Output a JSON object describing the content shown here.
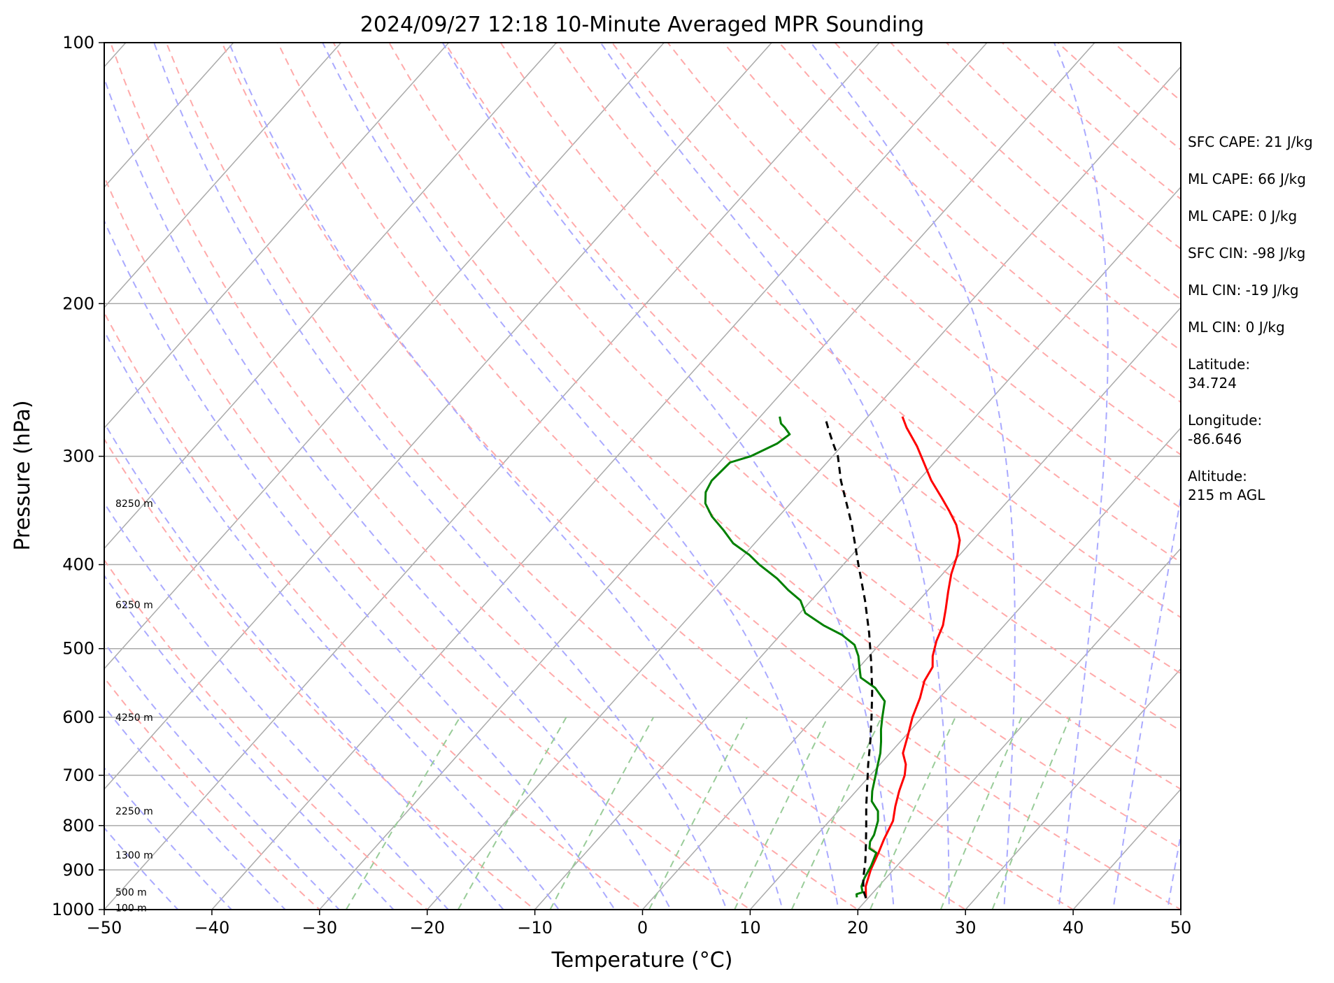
{
  "chart_data": {
    "type": "line",
    "title": "2024/09/27 12:18 10-Minute Averaged MPR Sounding",
    "xlabel": "Temperature (°C)",
    "ylabel": "Pressure (hPa)",
    "xlim": [
      -50,
      50
    ],
    "ylim": [
      1000,
      100
    ],
    "y_scale": "log",
    "grid": true,
    "x_ticks": [
      "−50",
      "−40",
      "−30",
      "−20",
      "−10",
      "0",
      "10",
      "20",
      "30",
      "40",
      "50"
    ],
    "y_ticks": [
      "100",
      "200",
      "300",
      "400",
      "500",
      "600",
      "700",
      "800",
      "900",
      "1000"
    ],
    "x_tick_values": [
      -50,
      -40,
      -30,
      -20,
      -10,
      0,
      10,
      20,
      30,
      40,
      50
    ],
    "y_tick_values": [
      100,
      200,
      300,
      400,
      500,
      600,
      700,
      800,
      900,
      1000
    ],
    "series": [
      {
        "key": "temperature",
        "color": "#ff0000",
        "dash": false,
        "points": [
          [
            19.8,
            970
          ],
          [
            18.8,
            940
          ],
          [
            17.9,
            900
          ],
          [
            17.2,
            860
          ],
          [
            16.6,
            830
          ],
          [
            15.9,
            790
          ],
          [
            14.9,
            760
          ],
          [
            14.0,
            730
          ],
          [
            13.2,
            700
          ],
          [
            12.4,
            680
          ],
          [
            11.2,
            660
          ],
          [
            10.2,
            630
          ],
          [
            9.1,
            600
          ],
          [
            8.2,
            570
          ],
          [
            7.2,
            545
          ],
          [
            6.8,
            525
          ],
          [
            5.9,
            510
          ],
          [
            5.0,
            490
          ],
          [
            4.3,
            470
          ],
          [
            3.2,
            450
          ],
          [
            2.0,
            430
          ],
          [
            0.8,
            410
          ],
          [
            -0.2,
            390
          ],
          [
            -1.2,
            375
          ],
          [
            -2.8,
            360
          ],
          [
            -4.6,
            347
          ],
          [
            -6.4,
            335
          ],
          [
            -8.8,
            320
          ],
          [
            -11.0,
            305
          ],
          [
            -13.0,
            292
          ],
          [
            -15.5,
            278
          ],
          [
            -16.8,
            270
          ]
        ]
      },
      {
        "key": "dewpoint",
        "color": "#008000",
        "dash": false,
        "points": [
          [
            18.9,
            968
          ],
          [
            18.6,
            960
          ],
          [
            19.0,
            955
          ],
          [
            18.4,
            940
          ],
          [
            18.0,
            920
          ],
          [
            17.6,
            890
          ],
          [
            17.0,
            860
          ],
          [
            16.0,
            850
          ],
          [
            15.5,
            835
          ],
          [
            15.3,
            820
          ],
          [
            14.5,
            790
          ],
          [
            13.7,
            770
          ],
          [
            12.3,
            750
          ],
          [
            11.5,
            730
          ],
          [
            10.5,
            700
          ],
          [
            9.8,
            680
          ],
          [
            9.1,
            660
          ],
          [
            8.2,
            640
          ],
          [
            7.2,
            620
          ],
          [
            6.3,
            600
          ],
          [
            5.2,
            575
          ],
          [
            3.2,
            555
          ],
          [
            1.0,
            540
          ],
          [
            0.0,
            525
          ],
          [
            -1.0,
            510
          ],
          [
            -2.3,
            495
          ],
          [
            -4.3,
            482
          ],
          [
            -6.8,
            470
          ],
          [
            -9.5,
            455
          ],
          [
            -11.0,
            440
          ],
          [
            -13.0,
            428
          ],
          [
            -15.0,
            415
          ],
          [
            -17.8,
            400
          ],
          [
            -19.5,
            390
          ],
          [
            -22.0,
            378
          ],
          [
            -24.0,
            365
          ],
          [
            -26.2,
            352
          ],
          [
            -27.9,
            340
          ],
          [
            -28.8,
            330
          ],
          [
            -29.2,
            320
          ],
          [
            -29.0,
            305
          ],
          [
            -27.6,
            300
          ],
          [
            -26.2,
            290
          ],
          [
            -25.8,
            283
          ],
          [
            -26.8,
            278
          ],
          [
            -27.5,
            275
          ],
          [
            -28.2,
            270
          ]
        ]
      },
      {
        "key": "parcel",
        "color": "#000000",
        "dash": true,
        "points": [
          [
            19.8,
            970
          ],
          [
            18.9,
            950
          ],
          [
            17.9,
            920
          ],
          [
            16.7,
            880
          ],
          [
            15.3,
            840
          ],
          [
            13.8,
            800
          ],
          [
            12.2,
            760
          ],
          [
            10.6,
            720
          ],
          [
            8.9,
            680
          ],
          [
            7.2,
            640
          ],
          [
            5.3,
            600
          ],
          [
            3.2,
            560
          ],
          [
            0.8,
            520
          ],
          [
            -1.9,
            480
          ],
          [
            -5.0,
            440
          ],
          [
            -8.6,
            400
          ],
          [
            -12.5,
            360
          ],
          [
            -17.2,
            320
          ],
          [
            -19.5,
            300
          ],
          [
            -21.0,
            290
          ],
          [
            -22.5,
            280
          ],
          [
            -24.0,
            270
          ]
        ]
      }
    ],
    "height_labels": [
      {
        "text": "8250 m",
        "p": 340
      },
      {
        "text": "6250 m",
        "p": 445
      },
      {
        "text": "4250 m",
        "p": 600
      },
      {
        "text": "2250 m",
        "p": 770
      },
      {
        "text": "1300 m",
        "p": 865
      },
      {
        "text": "500 m",
        "p": 955
      },
      {
        "text": "100 m",
        "p": 995
      }
    ],
    "annotations": [
      "SFC CAPE: 21 J/kg",
      "ML CAPE: 66 J/kg",
      "ML CAPE: 0 J/kg",
      "SFC CIN: -98 J/kg",
      "ML CIN: -19 J/kg",
      "ML CIN: 0 J/kg",
      "Latitude:",
      "34.724",
      "Longitude:",
      "-86.646",
      "Altitude:",
      "215 m AGL"
    ],
    "background_colors": {
      "isotherm": "#aaaaaa",
      "isobar": "#aaaaaa",
      "dry_adiabat": "#ffaaaa",
      "moist_adiabat": "#aaaaff",
      "mixing_ratio": "#99cc99"
    }
  }
}
